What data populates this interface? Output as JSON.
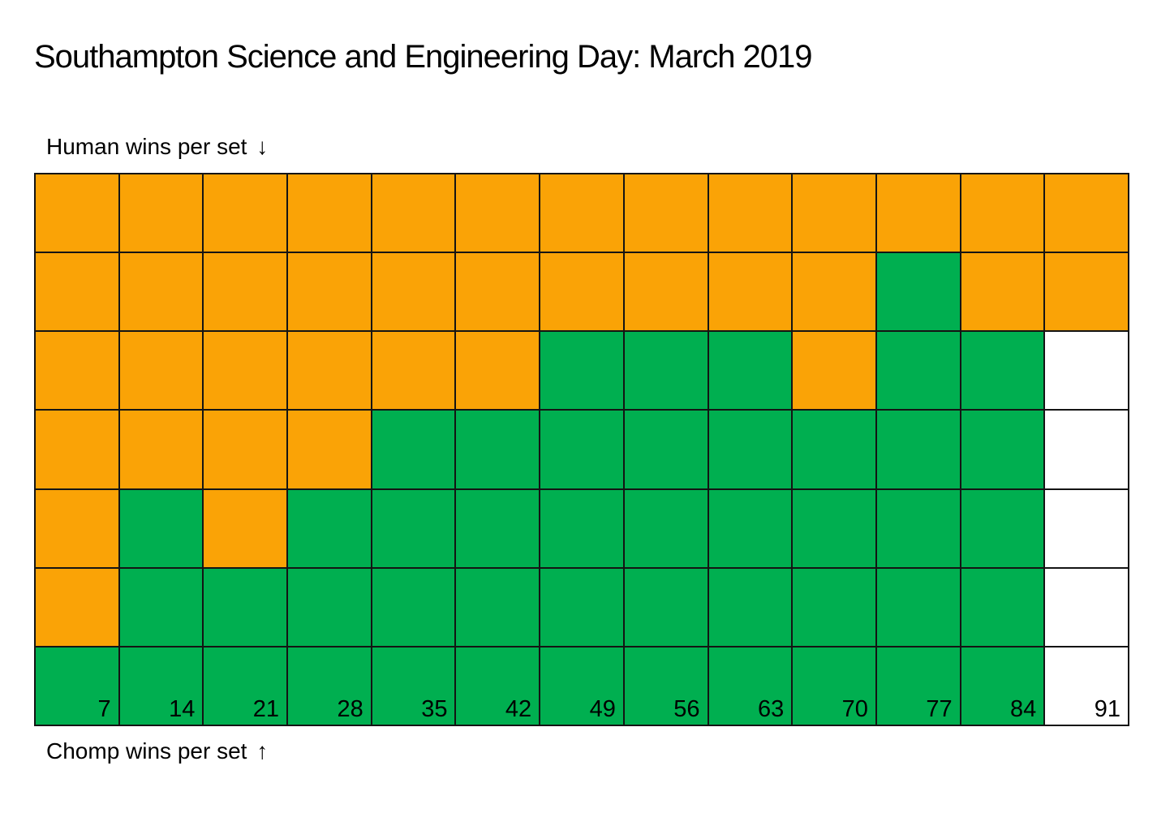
{
  "header": {
    "title": "Southampton Science and Engineering Day: March 2019"
  },
  "axis": {
    "top": {
      "text": "Human wins per set",
      "arrow": "↓"
    },
    "bottom": {
      "text": "Chomp wins per set",
      "arrow": "↑"
    }
  },
  "colors": {
    "human_orange": "#FAA306",
    "chomp_green": "#00AF50",
    "unplayed_white": "#FFFFFF",
    "grid_line": "#141414"
  },
  "grid": {
    "columns": 13,
    "rows": 7,
    "legend": {
      "O": "human win (orange)",
      "G": "chomp win (green)",
      "W": "unplayed (white)"
    },
    "cells": [
      "OOOOOOOOOOOOO",
      "OOOOOOOOOOGOO",
      "OOOOOOGGGOGGW",
      "OOOOGGGGGGGGW",
      "OGOGGGGGGGGGW",
      "OGGGGGGGGGGGW",
      "GGGGGGGGGGGGW"
    ],
    "column_labels": [
      "7",
      "14",
      "21",
      "28",
      "35",
      "42",
      "49",
      "56",
      "63",
      "70",
      "77",
      "84",
      "91"
    ]
  },
  "chart_data": {
    "type": "heatmap",
    "subtype": "waffle-stacked-columns",
    "title": "Southampton Science and Engineering Day: March 2019",
    "top_label": "Human wins per set ↓",
    "bottom_label": "Chomp wins per set ↑",
    "games_per_set": 7,
    "x_tick_labels_cumulative_games": [
      7,
      14,
      21,
      28,
      35,
      42,
      49,
      56,
      63,
      70,
      77,
      84,
      91
    ],
    "series": [
      {
        "name": "Chomp wins per set (green, stacked from bottom)",
        "values": [
          1,
          3,
          2,
          3,
          4,
          4,
          5,
          5,
          5,
          4,
          6,
          5,
          0
        ]
      },
      {
        "name": "Human wins per set (orange, stacked from top)",
        "values": [
          6,
          4,
          5,
          4,
          3,
          3,
          2,
          2,
          2,
          3,
          1,
          2,
          2
        ]
      },
      {
        "name": "Unplayed games (white)",
        "values": [
          0,
          0,
          0,
          0,
          0,
          0,
          0,
          0,
          0,
          0,
          0,
          0,
          5
        ]
      }
    ],
    "cell_matrix_top_to_bottom": [
      [
        "O",
        "O",
        "O",
        "O",
        "O",
        "O",
        "O",
        "O",
        "O",
        "O",
        "O",
        "O",
        "O"
      ],
      [
        "O",
        "O",
        "O",
        "O",
        "O",
        "O",
        "O",
        "O",
        "O",
        "O",
        "G",
        "O",
        "O"
      ],
      [
        "O",
        "O",
        "O",
        "O",
        "O",
        "O",
        "G",
        "G",
        "G",
        "O",
        "G",
        "G",
        "W"
      ],
      [
        "O",
        "O",
        "O",
        "O",
        "G",
        "G",
        "G",
        "G",
        "G",
        "G",
        "G",
        "G",
        "W"
      ],
      [
        "O",
        "G",
        "O",
        "G",
        "G",
        "G",
        "G",
        "G",
        "G",
        "G",
        "G",
        "G",
        "W"
      ],
      [
        "O",
        "G",
        "G",
        "G",
        "G",
        "G",
        "G",
        "G",
        "G",
        "G",
        "G",
        "G",
        "W"
      ],
      [
        "G",
        "G",
        "G",
        "G",
        "G",
        "G",
        "G",
        "G",
        "G",
        "G",
        "G",
        "G",
        "W"
      ]
    ],
    "layout": {
      "grid_on": true,
      "legend_position": "none"
    }
  }
}
